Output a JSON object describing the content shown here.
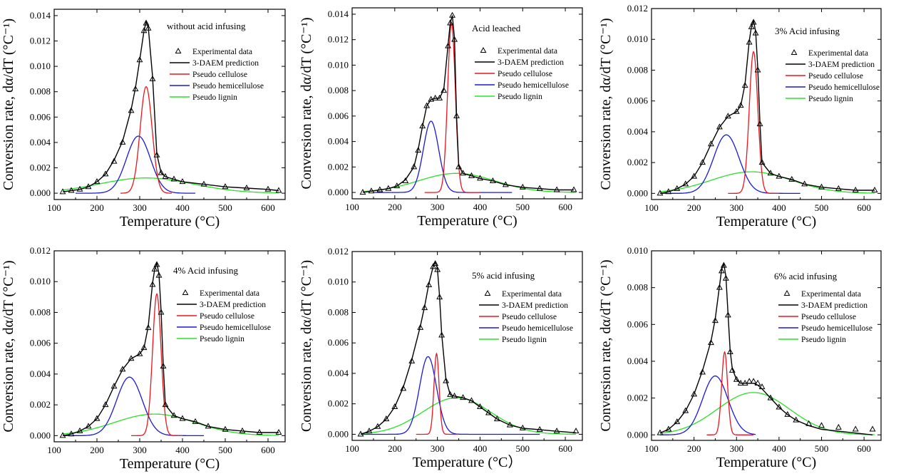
{
  "colors": {
    "experimental": "#000000",
    "prediction": "#000000",
    "cellulose": "#e8161e",
    "hemicellulose": "#1a1ad6",
    "lignin": "#2be02b"
  },
  "legend": {
    "experimental": "Experimental data",
    "prediction": "3-DAEM prediction",
    "cellulose": "Pseudo cellulose",
    "hemicellulose": "Pseudo hemicellulose",
    "lignin": "Pseudo lignin"
  },
  "chart_data": [
    {
      "type": "line",
      "annotation": "without acid infusing",
      "xlabel": "Temperature (°C)",
      "ylabel": "Conversion rate, dα/dT (°C⁻¹)",
      "xlim": [
        100,
        640
      ],
      "ylim": [
        -0.0005,
        0.0145
      ],
      "xticks": [
        100,
        200,
        300,
        400,
        500,
        600
      ],
      "yticks": [
        0.0,
        0.002,
        0.004,
        0.006,
        0.008,
        0.01,
        0.012,
        0.014
      ],
      "ytick_labels": [
        "0.000",
        "0.002",
        "0.004",
        "0.006",
        "0.008",
        "0.010",
        "0.012",
        "0.014"
      ],
      "legend_position": "right",
      "x": [
        120,
        140,
        160,
        180,
        200,
        220,
        240,
        260,
        280,
        290,
        300,
        310,
        315,
        320,
        330,
        340,
        350,
        360,
        380,
        400,
        450,
        500,
        550,
        600,
        625
      ],
      "experimental": [
        0.0001,
        0.0002,
        0.0003,
        0.0005,
        0.0009,
        0.0015,
        0.0025,
        0.004,
        0.0065,
        0.0082,
        0.0105,
        0.0128,
        0.0134,
        0.013,
        0.009,
        0.003,
        0.0016,
        0.0013,
        0.0011,
        0.0009,
        0.0007,
        0.0005,
        0.0004,
        0.0003,
        0.0002
      ],
      "prediction": [
        0.0001,
        0.0002,
        0.0003,
        0.0005,
        0.0009,
        0.0015,
        0.0026,
        0.0041,
        0.0066,
        0.0083,
        0.0105,
        0.0128,
        0.0135,
        0.0131,
        0.0092,
        0.0031,
        0.0016,
        0.0013,
        0.0011,
        0.0009,
        0.0007,
        0.0005,
        0.0004,
        0.0003,
        0.0002
      ],
      "components": {
        "cellulose": {
          "center": 315,
          "width": 14,
          "peak": 0.0084,
          "range": [
            255,
            375
          ]
        },
        "hemicellulose": {
          "center": 297,
          "width": 28,
          "peak": 0.0045,
          "range": [
            150,
            430
          ]
        },
        "lignin": {
          "center": 315,
          "width": 110,
          "peak": 0.0012,
          "range": [
            120,
            625
          ]
        }
      }
    },
    {
      "type": "line",
      "annotation": "Acid leached",
      "xlabel": "Temperature (°C)",
      "ylabel": "Conversion rate, dα/dT (°C⁻¹)",
      "xlim": [
        100,
        640
      ],
      "ylim": [
        -0.0005,
        0.0145
      ],
      "xticks": [
        100,
        200,
        300,
        400,
        500,
        600
      ],
      "yticks": [
        0.0,
        0.002,
        0.004,
        0.006,
        0.008,
        0.01,
        0.012,
        0.014
      ],
      "ytick_labels": [
        "0.000",
        "0.002",
        "0.004",
        "0.006",
        "0.008",
        "0.010",
        "0.012",
        "0.014"
      ],
      "legend_position": "right",
      "x": [
        125,
        145,
        165,
        185,
        205,
        225,
        245,
        255,
        265,
        275,
        285,
        295,
        305,
        315,
        325,
        330,
        335,
        340,
        345,
        350,
        360,
        380,
        400,
        430,
        460,
        500,
        540,
        580,
        620
      ],
      "experimental": [
        0.0,
        0.0001,
        0.0002,
        0.0003,
        0.0005,
        0.0009,
        0.002,
        0.0033,
        0.0052,
        0.0068,
        0.0073,
        0.0074,
        0.0074,
        0.008,
        0.0115,
        0.0133,
        0.0139,
        0.012,
        0.006,
        0.002,
        0.0015,
        0.0013,
        0.0011,
        0.0009,
        0.0006,
        0.0004,
        0.0003,
        0.0002,
        0.0002
      ],
      "prediction": [
        0.0,
        0.0001,
        0.0002,
        0.0003,
        0.0005,
        0.001,
        0.002,
        0.0034,
        0.0052,
        0.0068,
        0.0073,
        0.0074,
        0.0074,
        0.0081,
        0.0116,
        0.0133,
        0.0139,
        0.0121,
        0.006,
        0.0021,
        0.0015,
        0.0013,
        0.0011,
        0.0009,
        0.0006,
        0.0004,
        0.0003,
        0.0002,
        0.0002
      ],
      "components": {
        "cellulose": {
          "center": 333,
          "width": 9,
          "peak": 0.0133,
          "range": [
            270,
            400
          ]
        },
        "hemicellulose": {
          "center": 285,
          "width": 18,
          "peak": 0.0056,
          "range": [
            150,
            475
          ]
        },
        "lignin": {
          "center": 345,
          "width": 90,
          "peak": 0.0015,
          "range": [
            125,
            625
          ]
        }
      }
    },
    {
      "type": "line",
      "annotation": "3% Acid infusing",
      "xlabel": "Temperature (°C)",
      "ylabel": "Conversion rate, dα/dT (°C⁻¹)",
      "xlim": [
        100,
        640
      ],
      "ylim": [
        -0.0004,
        0.012
      ],
      "xticks": [
        100,
        200,
        300,
        400,
        500,
        600
      ],
      "yticks": [
        0.0,
        0.002,
        0.004,
        0.006,
        0.008,
        0.01,
        0.012
      ],
      "ytick_labels": [
        "0.000",
        "0.002",
        "0.004",
        "0.006",
        "0.008",
        "0.010",
        "0.012"
      ],
      "legend_position": "right",
      "x": [
        120,
        140,
        160,
        180,
        200,
        220,
        240,
        260,
        280,
        300,
        310,
        320,
        330,
        335,
        340,
        345,
        350,
        355,
        360,
        380,
        400,
        430,
        460,
        500,
        540,
        580,
        625
      ],
      "experimental": [
        0.0,
        0.0001,
        0.0003,
        0.0006,
        0.0011,
        0.002,
        0.0032,
        0.0043,
        0.005,
        0.0053,
        0.0057,
        0.007,
        0.0098,
        0.0108,
        0.0111,
        0.0104,
        0.008,
        0.0045,
        0.002,
        0.0013,
        0.0011,
        0.0009,
        0.0006,
        0.0004,
        0.0003,
        0.0002,
        0.0002
      ],
      "prediction": [
        0.0,
        0.0001,
        0.0003,
        0.0006,
        0.0011,
        0.002,
        0.0032,
        0.0043,
        0.005,
        0.0053,
        0.0057,
        0.0071,
        0.0099,
        0.0108,
        0.0112,
        0.0105,
        0.0081,
        0.0046,
        0.002,
        0.0013,
        0.0011,
        0.0009,
        0.0006,
        0.0004,
        0.0003,
        0.0002,
        0.0002
      ],
      "components": {
        "cellulose": {
          "center": 340,
          "width": 10,
          "peak": 0.0092,
          "range": [
            280,
            400
          ]
        },
        "hemicellulose": {
          "center": 276,
          "width": 30,
          "peak": 0.0038,
          "range": [
            120,
            450
          ]
        },
        "lignin": {
          "center": 335,
          "width": 95,
          "peak": 0.0014,
          "range": [
            120,
            625
          ]
        }
      }
    },
    {
      "type": "line",
      "annotation": "4% Acid infusing",
      "xlabel": "Temperature (°C)",
      "ylabel": "Conversion rate, dα/dT (°C⁻¹)",
      "xlim": [
        100,
        640
      ],
      "ylim": [
        -0.0004,
        0.012
      ],
      "xticks": [
        100,
        200,
        300,
        400,
        500,
        600
      ],
      "yticks": [
        0.0,
        0.002,
        0.004,
        0.006,
        0.008,
        0.01,
        0.012
      ],
      "ytick_labels": [
        "0.000",
        "0.002",
        "0.004",
        "0.006",
        "0.008",
        "0.010",
        "0.012"
      ],
      "legend_position": "right",
      "x": [
        120,
        140,
        160,
        180,
        200,
        220,
        240,
        260,
        280,
        300,
        310,
        320,
        330,
        335,
        340,
        345,
        350,
        355,
        360,
        380,
        400,
        430,
        460,
        500,
        540,
        580,
        625
      ],
      "experimental": [
        0.0,
        0.0001,
        0.0003,
        0.0006,
        0.0011,
        0.002,
        0.0032,
        0.0043,
        0.005,
        0.0053,
        0.0057,
        0.007,
        0.0098,
        0.0108,
        0.0111,
        0.0104,
        0.008,
        0.0045,
        0.002,
        0.0013,
        0.0011,
        0.0009,
        0.0006,
        0.0004,
        0.0003,
        0.0002,
        0.0002
      ],
      "prediction": [
        0.0,
        0.0001,
        0.0003,
        0.0006,
        0.0011,
        0.002,
        0.0032,
        0.0043,
        0.005,
        0.0053,
        0.0057,
        0.0071,
        0.0099,
        0.0108,
        0.0112,
        0.0105,
        0.0081,
        0.0046,
        0.002,
        0.0013,
        0.0011,
        0.0009,
        0.0006,
        0.0004,
        0.0003,
        0.0002,
        0.0002
      ],
      "components": {
        "cellulose": {
          "center": 340,
          "width": 10,
          "peak": 0.0092,
          "range": [
            280,
            400
          ]
        },
        "hemicellulose": {
          "center": 276,
          "width": 30,
          "peak": 0.0038,
          "range": [
            120,
            450
          ]
        },
        "lignin": {
          "center": 335,
          "width": 95,
          "peak": 0.0014,
          "range": [
            120,
            625
          ]
        }
      }
    },
    {
      "type": "line",
      "annotation": "5% acid infusing",
      "xlabel": "Temperature (°C）",
      "ylabel": "Conversion rate, dα/dT (°C⁻¹)",
      "xlim": [
        100,
        640
      ],
      "ylim": [
        -0.0004,
        0.012
      ],
      "xticks": [
        100,
        200,
        300,
        400,
        500,
        600
      ],
      "yticks": [
        0.0,
        0.002,
        0.004,
        0.006,
        0.008,
        0.01,
        0.012
      ],
      "ytick_labels": [
        "0.000",
        "0.002",
        "0.004",
        "0.006",
        "0.008",
        "0.010",
        "0.012"
      ],
      "legend_position": "right",
      "x": [
        120,
        140,
        160,
        180,
        200,
        220,
        240,
        260,
        270,
        280,
        290,
        295,
        300,
        305,
        310,
        320,
        330,
        340,
        360,
        380,
        400,
        420,
        440,
        470,
        500,
        540,
        580,
        625
      ],
      "experimental": [
        0.0,
        0.0002,
        0.0005,
        0.001,
        0.0018,
        0.003,
        0.0048,
        0.007,
        0.0083,
        0.0098,
        0.011,
        0.0112,
        0.0108,
        0.009,
        0.0065,
        0.0035,
        0.0026,
        0.0025,
        0.0024,
        0.0022,
        0.0018,
        0.0014,
        0.001,
        0.0006,
        0.0004,
        0.0003,
        0.0002,
        0.0002
      ],
      "prediction": [
        0.0,
        0.0002,
        0.0005,
        0.001,
        0.0018,
        0.0031,
        0.0049,
        0.0071,
        0.0084,
        0.0099,
        0.011,
        0.0113,
        0.0109,
        0.0091,
        0.0066,
        0.0036,
        0.0026,
        0.0025,
        0.0024,
        0.0022,
        0.0018,
        0.0014,
        0.001,
        0.0006,
        0.0004,
        0.0003,
        0.0002,
        0.0001
      ],
      "components": {
        "cellulose": {
          "center": 298,
          "width": 6,
          "peak": 0.0053,
          "range": [
            250,
            350
          ]
        },
        "hemicellulose": {
          "center": 278,
          "width": 20,
          "peak": 0.0051,
          "range": [
            120,
            540
          ]
        },
        "lignin": {
          "center": 345,
          "width": 80,
          "peak": 0.0024,
          "range": [
            120,
            625
          ]
        }
      }
    },
    {
      "type": "line",
      "annotation": "6% acid infusing",
      "xlabel": "Temperature (°C)",
      "ylabel": "Conversion rate, dα/dT (°C⁻¹)",
      "xlim": [
        100,
        640
      ],
      "ylim": [
        -0.0003,
        0.01
      ],
      "xticks": [
        100,
        200,
        300,
        400,
        500,
        600
      ],
      "yticks": [
        0.0,
        0.002,
        0.004,
        0.006,
        0.008,
        0.01
      ],
      "ytick_labels": [
        "0.000",
        "0.002",
        "0.004",
        "0.006",
        "0.008",
        "0.010"
      ],
      "legend_position": "right",
      "x": [
        120,
        140,
        160,
        180,
        200,
        220,
        240,
        250,
        260,
        265,
        270,
        275,
        280,
        285,
        290,
        300,
        310,
        320,
        330,
        340,
        350,
        360,
        380,
        400,
        420,
        440,
        470,
        500,
        540,
        580,
        620
      ],
      "experimental": [
        0.0001,
        0.0003,
        0.0007,
        0.0013,
        0.0022,
        0.0034,
        0.005,
        0.0062,
        0.008,
        0.0089,
        0.0092,
        0.0085,
        0.0065,
        0.0045,
        0.0035,
        0.003,
        0.0028,
        0.0028,
        0.0029,
        0.0029,
        0.0028,
        0.0026,
        0.002,
        0.0015,
        0.0011,
        0.0008,
        0.0006,
        0.0005,
        0.0004,
        0.0003,
        0.0003
      ],
      "prediction": [
        0.0001,
        0.0003,
        0.0007,
        0.0013,
        0.0022,
        0.0035,
        0.0051,
        0.0063,
        0.0081,
        0.009,
        0.0093,
        0.0086,
        0.0066,
        0.0046,
        0.0036,
        0.003,
        0.0028,
        0.0028,
        0.0028,
        0.0028,
        0.0027,
        0.0025,
        0.002,
        0.0015,
        0.0011,
        0.0008,
        0.0005,
        0.0003,
        0.0002,
        0.0001,
        0.0
      ],
      "components": {
        "cellulose": {
          "center": 272,
          "width": 7,
          "peak": 0.0045,
          "range": [
            230,
            340
          ]
        },
        "hemicellulose": {
          "center": 250,
          "width": 30,
          "peak": 0.0032,
          "range": [
            120,
            345
          ]
        },
        "lignin": {
          "center": 340,
          "width": 85,
          "peak": 0.0023,
          "range": [
            120,
            625
          ]
        }
      }
    }
  ]
}
